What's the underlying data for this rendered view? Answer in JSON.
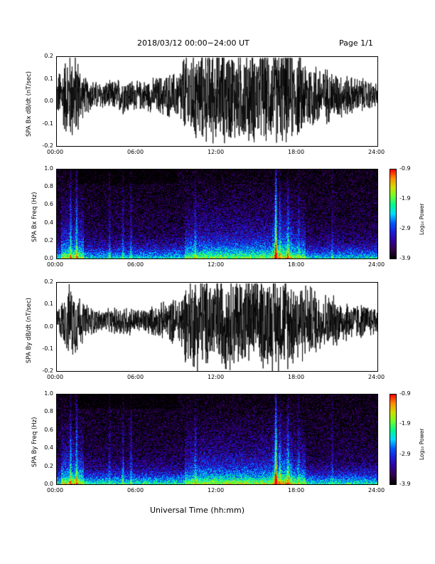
{
  "header": {
    "title": "2018/03/12  00:00−24:00 UT",
    "page": "Page 1/1"
  },
  "footer": {
    "xlabel": "Universal Time (hh:mm)"
  },
  "colors": {
    "panel_bg": "#ffffff",
    "trace": "#000000",
    "spec_bg": "#000000"
  },
  "colorbar": {
    "label": "Log₁₀ Power",
    "ticks": [
      "-0.9",
      "-1.9",
      "-2.9",
      "-3.9"
    ]
  },
  "chart_data": [
    {
      "type": "line",
      "ylabel": "SPA Bx dB/dt (nT/sec)",
      "xticks": [
        "00:00",
        "06:00",
        "12:00",
        "18:00",
        "24:00"
      ],
      "yticks": [
        "0.2",
        "0.1",
        "0.0",
        "-0.1",
        "-0.2"
      ],
      "xlim_hours": [
        0,
        24
      ],
      "ylim": [
        -0.2,
        0.2
      ],
      "amplitude_envelope": {
        "x_hours": [
          0,
          0.5,
          1,
          1.5,
          2,
          3,
          4,
          5,
          6,
          7,
          8,
          9,
          9.5,
          10,
          11,
          12,
          13,
          14,
          15,
          16,
          16.5,
          17,
          18,
          19,
          20,
          21,
          22,
          23,
          24
        ],
        "y": [
          0.08,
          0.15,
          0.2,
          0.18,
          0.08,
          0.06,
          0.06,
          0.08,
          0.06,
          0.07,
          0.09,
          0.1,
          0.18,
          0.2,
          0.2,
          0.2,
          0.2,
          0.2,
          0.2,
          0.2,
          0.2,
          0.2,
          0.18,
          0.15,
          0.12,
          0.1,
          0.08,
          0.07,
          0.05
        ]
      }
    },
    {
      "type": "heatmap",
      "ylabel": "SPA Bx Freq (Hz)",
      "xticks": [
        "00:00",
        "06:00",
        "12:00",
        "18:00",
        "24:00"
      ],
      "yticks": [
        "1.0",
        "0.8",
        "0.6",
        "0.4",
        "0.2",
        "0.0"
      ],
      "xlim_hours": [
        0,
        24
      ],
      "ylim": [
        0,
        1.0
      ],
      "zlim": [
        -3.9,
        -0.9
      ]
    },
    {
      "type": "line",
      "ylabel": "SPA By dB/dt (nT/sec)",
      "xticks": [
        "00:00",
        "06:00",
        "12:00",
        "18:00",
        "24:00"
      ],
      "yticks": [
        "0.2",
        "0.1",
        "0.0",
        "-0.1",
        "-0.2"
      ],
      "xlim_hours": [
        0,
        24
      ],
      "ylim": [
        -0.2,
        0.2
      ],
      "amplitude_envelope": {
        "x_hours": [
          0,
          0.5,
          1,
          1.5,
          2,
          3,
          4,
          5,
          6,
          7,
          8,
          9,
          9.5,
          10,
          11,
          12,
          13,
          14,
          15,
          16,
          16.5,
          17,
          18,
          19,
          20,
          21,
          22,
          23,
          24
        ],
        "y": [
          0.05,
          0.1,
          0.16,
          0.14,
          0.08,
          0.05,
          0.05,
          0.07,
          0.05,
          0.06,
          0.08,
          0.1,
          0.16,
          0.2,
          0.2,
          0.2,
          0.2,
          0.2,
          0.2,
          0.2,
          0.2,
          0.2,
          0.18,
          0.15,
          0.12,
          0.1,
          0.08,
          0.07,
          0.06
        ]
      }
    },
    {
      "type": "heatmap",
      "ylabel": "SPA By Freq (Hz)",
      "xticks": [
        "00:00",
        "06:00",
        "12:00",
        "18:00",
        "24:00"
      ],
      "yticks": [
        "1.0",
        "0.8",
        "0.6",
        "0.4",
        "0.2",
        "0.0"
      ],
      "xlim_hours": [
        0,
        24
      ],
      "ylim": [
        0,
        1.0
      ],
      "zlim": [
        -3.9,
        -0.9
      ]
    }
  ]
}
